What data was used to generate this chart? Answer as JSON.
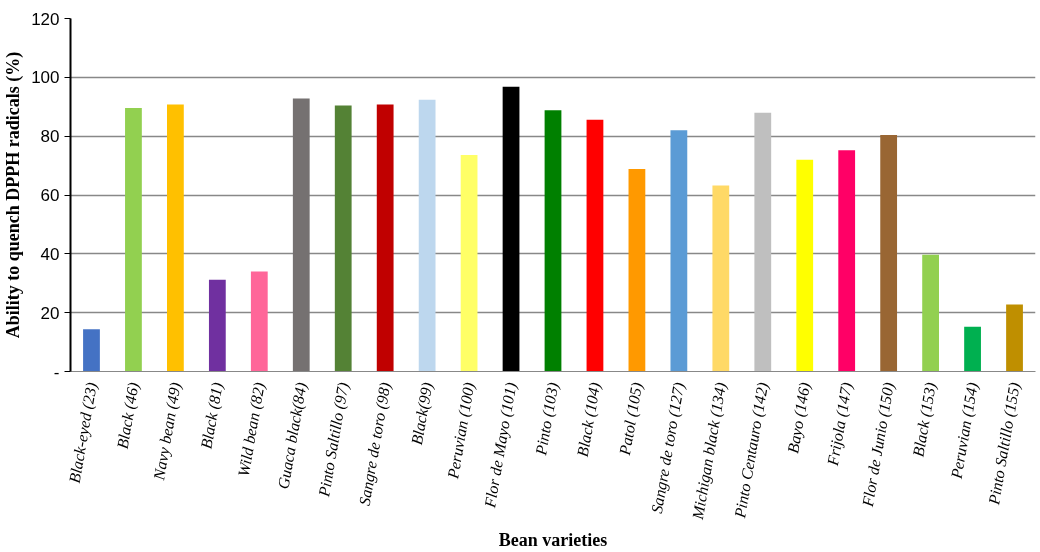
{
  "chart_data": {
    "type": "bar",
    "xlabel": "Bean varieties",
    "ylabel": "Ability to quench DPPH radicals (%)",
    "categories": [
      "Black-eyed (23)",
      "Black (46)",
      "Navy bean (49)",
      "Black (81)",
      "Wild bean (82)",
      "Guaca black(84)",
      "Pinto Saltillo (97)",
      "Sangre de toro (98)",
      "Black(99)",
      "Peruvian (100)",
      "Flor de Mayo (101)",
      "Pinto (103)",
      "Black (104)",
      "Patol (105)",
      "Sangre de toro (127)",
      "Michigan black (134)",
      "Pinto Centauro (142)",
      "Bayo (146)",
      "Frijola (147)",
      "Flor de Junio (150)",
      "Black (153)",
      "Peruvian (154)",
      "Pinto Saltillo (155)"
    ],
    "values": [
      14.4,
      89.6,
      90.8,
      31.2,
      34,
      92.8,
      90.4,
      90.8,
      92.4,
      73.6,
      96.8,
      88.8,
      85.6,
      68.8,
      82,
      63.2,
      88,
      72,
      75.2,
      80.4,
      39.7,
      15.2,
      22.8
    ],
    "colors": [
      "#4472c4",
      "#92d050",
      "#ffc000",
      "#7030a0",
      "#ff6699",
      "#757171",
      "#548235",
      "#c00000",
      "#bdd7ee",
      "#ffff66",
      "#000000",
      "#008000",
      "#ff0000",
      "#ff9900",
      "#5b9bd5",
      "#ffd966",
      "#bfbfbf",
      "#ffff00",
      "#ff0066",
      "#996633",
      "#92d050",
      "#00b050",
      "#bf8f00"
    ],
    "ylim": [
      0,
      120
    ],
    "yticks": [
      {
        "value": 0,
        "label": "-"
      },
      20,
      40,
      60,
      80,
      100,
      120
    ],
    "grid": "y"
  }
}
